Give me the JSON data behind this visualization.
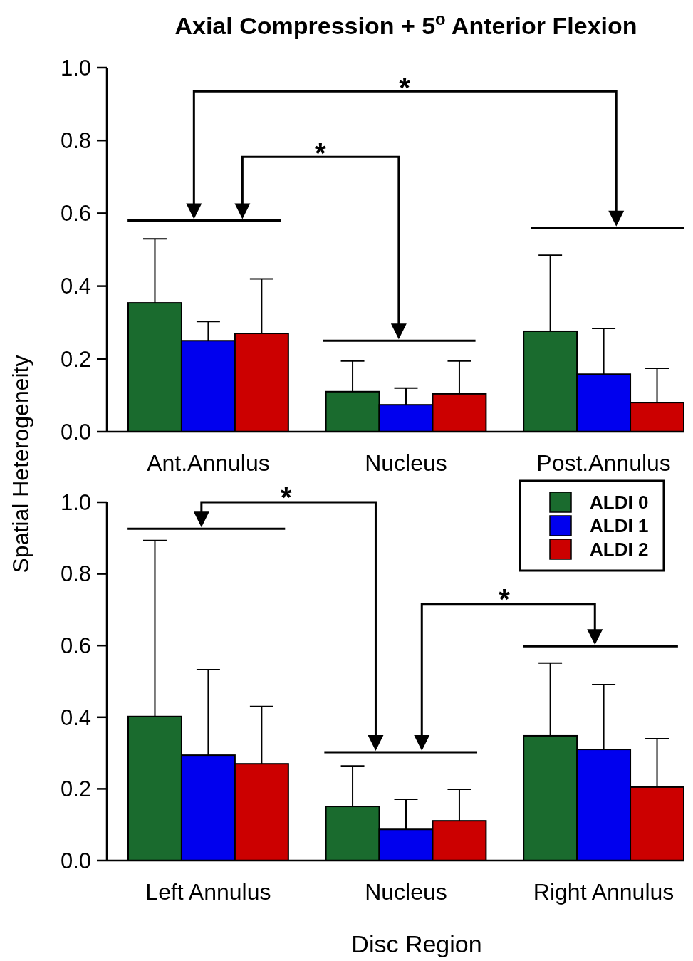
{
  "chart_data": [
    {
      "type": "bar",
      "title": "Axial Compression + 5$^{o}$ Anterior Flexion",
      "ylabel": "Spatial Heterogeneity",
      "categories": [
        "Ant.Annulus",
        "Nucleus",
        "Post.Annulus"
      ],
      "series": [
        {
          "color": "#1a6b2e",
          "values": [
            0.354,
            0.11,
            0.276
          ],
          "errors": [
            [
              0.354,
              0.53
            ],
            [
              0.11,
              0.194
            ],
            [
              0.276,
              0.485
            ]
          ]
        },
        {
          "color": "#0000ee",
          "values": [
            0.25,
            0.074,
            0.158
          ],
          "errors": [
            [
              0.25,
              0.303
            ],
            [
              0.074,
              0.12
            ],
            [
              0.158,
              0.284
            ]
          ]
        },
        {
          "color": "#cc0000",
          "values": [
            0.27,
            0.104,
            0.08
          ],
          "errors": [
            [
              0.27,
              0.42
            ],
            [
              0.104,
              0.194
            ],
            [
              0.08,
              0.174
            ]
          ]
        }
      ],
      "ylim": [
        0,
        1
      ],
      "yticks": [
        {
          "value": 0,
          "label": "0.0"
        },
        {
          "value": 0.2,
          "label": "0.2"
        },
        {
          "value": 0.4,
          "label": "0.4"
        },
        {
          "value": 0.6,
          "label": "0.6"
        },
        {
          "value": 0.8,
          "label": "0.8"
        },
        {
          "value": 1,
          "label": "1.0"
        }
      ],
      "annotations": [
        "*",
        "*"
      ]
    },
    {
      "type": "bar",
      "xlabel": "Disc Region",
      "categories": [
        "Left Annulus",
        "Nucleus",
        "Right Annulus"
      ],
      "series": [
        {
          "name": "ALDI 0",
          "color": "#1a6b2e",
          "values": [
            0.402,
            0.151,
            0.348
          ],
          "errors": [
            [
              0.402,
              0.893
            ],
            [
              0.151,
              0.264
            ],
            [
              0.348,
              0.551
            ]
          ]
        },
        {
          "name": "ALDI 1",
          "color": "#0000ee",
          "values": [
            0.294,
            0.087,
            0.31
          ],
          "errors": [
            [
              0.294,
              0.533
            ],
            [
              0.087,
              0.171
            ],
            [
              0.31,
              0.491
            ]
          ]
        },
        {
          "name": "ALDI 2",
          "color": "#cc0000",
          "values": [
            0.27,
            0.111,
            0.205
          ],
          "errors": [
            [
              0.27,
              0.43
            ],
            [
              0.111,
              0.199
            ],
            [
              0.205,
              0.34
            ]
          ]
        }
      ],
      "ylim": [
        0,
        1
      ],
      "yticks": [
        {
          "value": 0,
          "label": "0.0"
        },
        {
          "value": 0.2,
          "label": "0.2"
        },
        {
          "value": 0.4,
          "label": "0.4"
        },
        {
          "value": 0.6,
          "label": "0.6"
        },
        {
          "value": 0.8,
          "label": "0.8"
        },
        {
          "value": 1,
          "label": "1.0"
        }
      ],
      "legend": "top right",
      "annotations": [
        "*",
        "*"
      ]
    }
  ]
}
